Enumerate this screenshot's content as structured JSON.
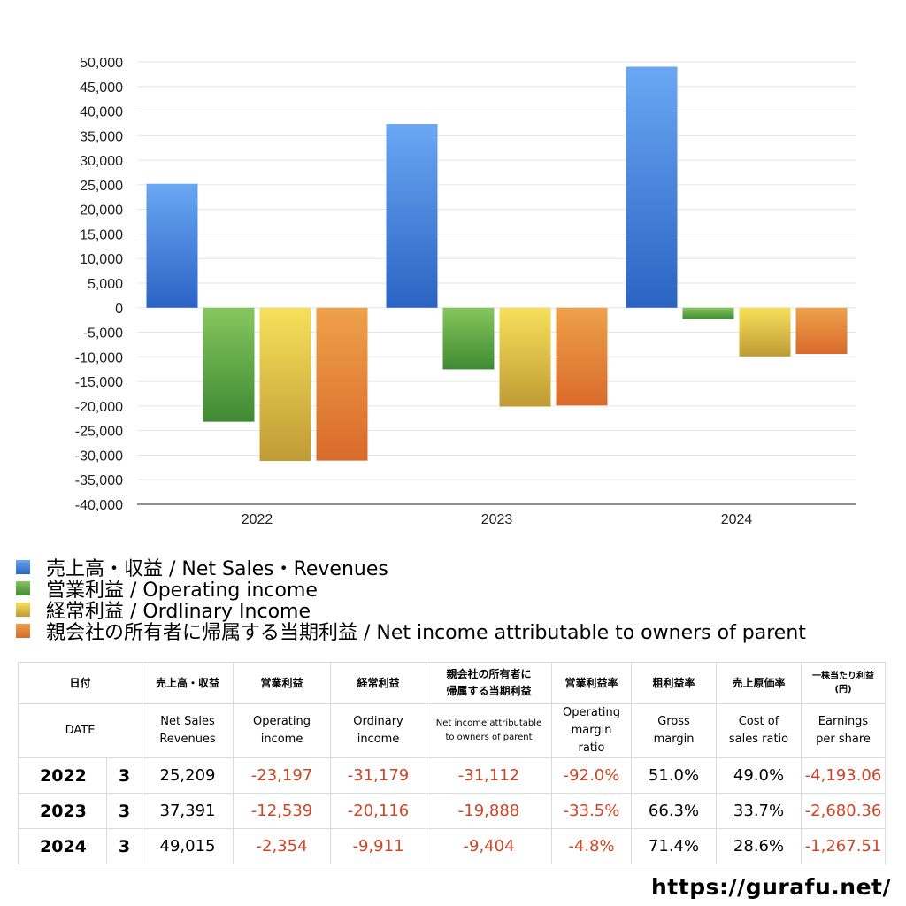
{
  "chart_data": {
    "type": "bar",
    "categories": [
      "2022",
      "2023",
      "2024"
    ],
    "series": [
      {
        "name": "売上高・収益 / Net Sales・Revenues",
        "values": [
          25209,
          37391,
          49015
        ],
        "color": "#3d7fdc"
      },
      {
        "name": "営業利益 / Operating income",
        "values": [
          -23197,
          -12539,
          -2354
        ],
        "color": "#5aa43e"
      },
      {
        "name": "経常利益 / Ordlinary Income",
        "values": [
          -31179,
          -20116,
          -9911
        ],
        "color": "#dcc23f"
      },
      {
        "name": "親会社の所有者に帰属する当期利益 / Net income attributable to owners of parent",
        "values": [
          -31112,
          -19888,
          -9404
        ],
        "color": "#e4812f"
      }
    ],
    "ylim": [
      -40000,
      50000
    ],
    "yticks": [
      50000,
      45000,
      40000,
      35000,
      30000,
      25000,
      20000,
      15000,
      10000,
      5000,
      0,
      -5000,
      -10000,
      -15000,
      -20000,
      -25000,
      -30000,
      -35000,
      -40000
    ],
    "ytick_labels": [
      "50,000",
      "45,000",
      "40,000",
      "35,000",
      "30,000",
      "25,000",
      "20,000",
      "15,000",
      "10,000",
      "5,000",
      "0",
      "-5,000",
      "-10,000",
      "-15,000",
      "-20,000",
      "-25,000",
      "-30,000",
      "-35,000",
      "-40,000"
    ],
    "grid": true,
    "legend_position": "bottom-left"
  },
  "table": {
    "header_jp": [
      "日付",
      "売上高・収益",
      "営業利益",
      "経常利益",
      "親会社の所有者に",
      "帰属する当期利益",
      "営業利益率",
      "粗利益率",
      "売上原価率",
      "一株当たり利益",
      "(円)"
    ],
    "header_en": {
      "date": "DATE",
      "sales": [
        "Net Sales",
        "Revenues"
      ],
      "op": [
        "Operating",
        "income"
      ],
      "ord": [
        "Ordinary",
        "income"
      ],
      "net": [
        "Net income attributable",
        "to owners of parent"
      ],
      "opm": [
        "Operating",
        "margin",
        "ratio"
      ],
      "gm": [
        "Gross",
        "margin"
      ],
      "cos": [
        "Cost of",
        "sales ratio"
      ],
      "eps": [
        "Earnings",
        "per share"
      ]
    },
    "rows": [
      {
        "year": "2022",
        "month": "3",
        "sales": "25,209",
        "op": "-23,197",
        "ord": "-31,179",
        "net": "-31,112",
        "opm": "-92.0%",
        "gm": "51.0%",
        "cos": "49.0%",
        "eps": "-4,193.06"
      },
      {
        "year": "2023",
        "month": "3",
        "sales": "37,391",
        "op": "-12,539",
        "ord": "-20,116",
        "net": "-19,888",
        "opm": "-33.5%",
        "gm": "66.3%",
        "cos": "33.7%",
        "eps": "-2,680.36"
      },
      {
        "year": "2024",
        "month": "3",
        "sales": "49,015",
        "op": "-2,354",
        "ord": "-9,911",
        "net": "-9,404",
        "opm": "-4.8%",
        "gm": "71.4%",
        "cos": "28.6%",
        "eps": "-1,267.51"
      }
    ]
  },
  "footer": {
    "url": "https://gurafu.net/"
  },
  "colors": {
    "negative": "#d04525"
  }
}
